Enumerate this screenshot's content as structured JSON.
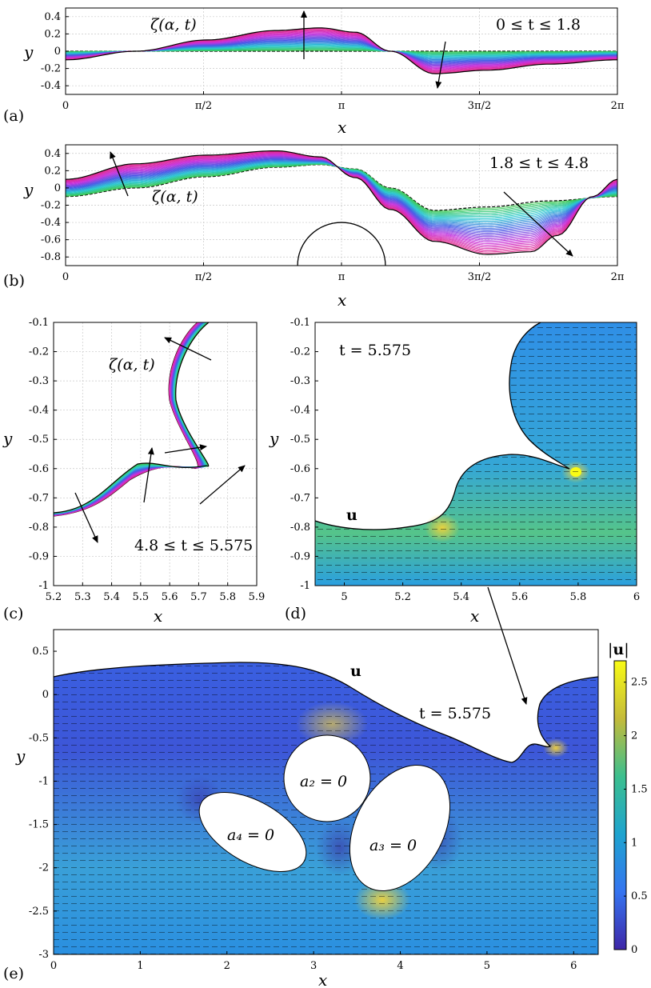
{
  "figure": {
    "panel_labels": [
      "(a)",
      "(b)",
      "(c)",
      "(d)",
      "(e)"
    ],
    "x_label": "x",
    "y_label": "y",
    "velocity_symbol": "u",
    "colorbar_label": "|u|",
    "colorbar_ticks": [
      "2.5",
      "2",
      "1.5",
      "1",
      "0.5",
      "0"
    ]
  },
  "chart_data": [
    {
      "panel": "(a)",
      "type": "line",
      "title": "",
      "annotations": [
        "ζ(α, t)",
        "0 ≤ t ≤ 1.8"
      ],
      "xlabel": "x",
      "ylabel": "y",
      "xlim": [
        0,
        6.2832
      ],
      "ylim": [
        -0.5,
        0.5
      ],
      "x_tick_labels": [
        "0",
        "π/2",
        "π",
        "3π/2",
        "2π"
      ],
      "y_tick_labels": [
        "0.4",
        "0.2",
        "0",
        "-0.2",
        "-0.4"
      ],
      "grid": true,
      "series": [
        {
          "x": [
            0,
            0.8,
            1.6,
            2.4,
            2.9,
            3.3,
            3.7,
            4.2,
            4.8,
            5.5,
            6.2832
          ],
          "y": [
            0,
            0,
            0,
            0,
            0,
            0,
            0,
            0,
            0,
            0,
            0
          ]
        },
        {
          "x": [
            0,
            0.8,
            1.6,
            2.4,
            2.9,
            3.3,
            3.7,
            4.2,
            4.8,
            5.5,
            6.2832
          ],
          "y": [
            -0.1,
            0.0,
            0.13,
            0.24,
            0.27,
            0.22,
            0.0,
            -0.26,
            -0.22,
            -0.15,
            -0.1
          ]
        }
      ]
    },
    {
      "panel": "(b)",
      "type": "line",
      "title": "",
      "annotations": [
        "ζ(α, t)",
        "1.8 ≤ t ≤ 4.8"
      ],
      "xlabel": "x",
      "ylabel": "y",
      "xlim": [
        0,
        6.2832
      ],
      "ylim": [
        -0.9,
        0.5
      ],
      "x_tick_labels": [
        "0",
        "π/2",
        "π",
        "3π/2",
        "2π"
      ],
      "y_tick_labels": [
        "0.4",
        "0.2",
        "0",
        "-0.2",
        "-0.4",
        "-0.6",
        "-0.8"
      ],
      "grid": true,
      "obstacle": {
        "center_x": 3.1416,
        "center_y": -0.9,
        "radius": 0.5
      },
      "series": [
        {
          "x": [
            0,
            0.8,
            1.6,
            2.4,
            2.9,
            3.3,
            3.7,
            4.2,
            4.8,
            5.5,
            6.2832
          ],
          "y": [
            -0.1,
            0.0,
            0.13,
            0.24,
            0.27,
            0.22,
            0.0,
            -0.26,
            -0.22,
            -0.15,
            -0.1
          ]
        },
        {
          "x": [
            0,
            0.8,
            1.6,
            2.4,
            2.9,
            3.3,
            3.7,
            4.2,
            4.8,
            5.3,
            5.6,
            6.0,
            6.2832
          ],
          "y": [
            0.1,
            0.28,
            0.38,
            0.43,
            0.36,
            0.12,
            -0.25,
            -0.62,
            -0.77,
            -0.74,
            -0.55,
            -0.1,
            0.1
          ]
        }
      ]
    },
    {
      "panel": "(c)",
      "type": "line",
      "title": "",
      "annotations": [
        "ζ(α, t)",
        "4.8 ≤ t ≤ 5.575"
      ],
      "xlabel": "x",
      "ylabel": "y",
      "xlim": [
        5.2,
        5.9
      ],
      "ylim": [
        -1,
        -0.1
      ],
      "x_tick_labels": [
        "5.2",
        "5.3",
        "5.4",
        "5.5",
        "5.6",
        "5.7",
        "5.8",
        "5.9"
      ],
      "y_tick_labels": [
        "-0.1",
        "-0.2",
        "-0.3",
        "-0.4",
        "-0.5",
        "-0.6",
        "-0.7",
        "-0.8",
        "-0.9",
        "-1"
      ],
      "grid": true
    },
    {
      "panel": "(d)",
      "type": "heatmap",
      "title": "",
      "annotations": [
        "t = 5.575",
        "u"
      ],
      "xlabel": "x",
      "ylabel": "y",
      "xlim": [
        4.9,
        6.0
      ],
      "ylim": [
        -1,
        -0.1
      ],
      "x_tick_labels": [
        "5",
        "5.2",
        "5.4",
        "5.6",
        "5.8",
        "6"
      ],
      "y_tick_labels": [
        "-0.1",
        "-0.2",
        "-0.3",
        "-0.4",
        "-0.5",
        "-0.6",
        "-0.7",
        "-0.8",
        "-0.9",
        "-1"
      ]
    },
    {
      "panel": "(e)",
      "type": "heatmap",
      "title": "",
      "annotations": [
        "t = 5.575",
        "u",
        "a₂ = 0",
        "a₃ = 0",
        "a₄ = 0"
      ],
      "xlabel": "x",
      "ylabel": "y",
      "xlim": [
        0,
        6.2832
      ],
      "ylim": [
        -3,
        0.75
      ],
      "x_tick_labels": [
        "0",
        "1",
        "2",
        "3",
        "4",
        "5",
        "6"
      ],
      "y_tick_labels": [
        "0.5",
        "0",
        "-0.5",
        "-1",
        "-1.5",
        "-2",
        "-2.5",
        "-3"
      ],
      "colorbar": {
        "label": "|u|",
        "min": 0,
        "max": 2.7,
        "ticks": [
          0,
          0.5,
          1,
          1.5,
          2,
          2.5
        ]
      }
    }
  ]
}
